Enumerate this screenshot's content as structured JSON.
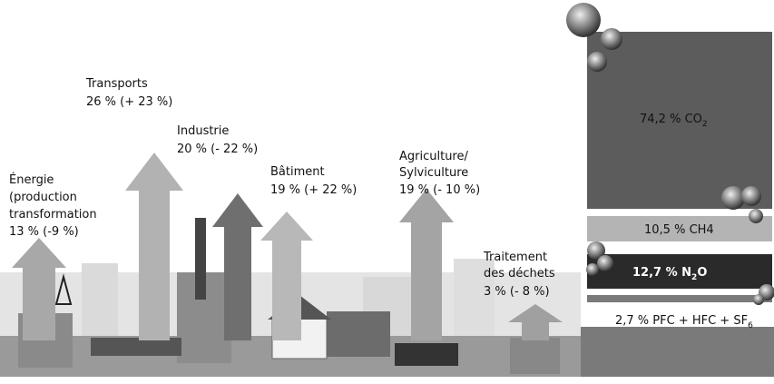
{
  "sectors": [
    {
      "lines": [
        "Énergie",
        "(production",
        "transformation",
        "13 % (-9 %)"
      ]
    },
    {
      "lines": [
        "Transports",
        "26 % (+ 23 %)"
      ]
    },
    {
      "lines": [
        "Industrie",
        "20 % (- 22 %)"
      ]
    },
    {
      "lines": [
        "Bâtiment",
        "19 % (+ 22 %)"
      ]
    },
    {
      "lines": [
        "Agriculture/",
        "Sylviculture",
        "19 % (- 10 %)"
      ]
    },
    {
      "lines": [
        "Traitement",
        "des déchets",
        "3 % (- 8 %)"
      ]
    }
  ],
  "gases": [
    {
      "text": "74,2 % CO",
      "sub": "2"
    },
    {
      "text": "10,5 % CH4"
    },
    {
      "text": "12,7 % N",
      "sub": "2",
      "after": "O"
    },
    {
      "text": "2,7 % PFC + HFC + SF",
      "sub": "6"
    }
  ]
}
